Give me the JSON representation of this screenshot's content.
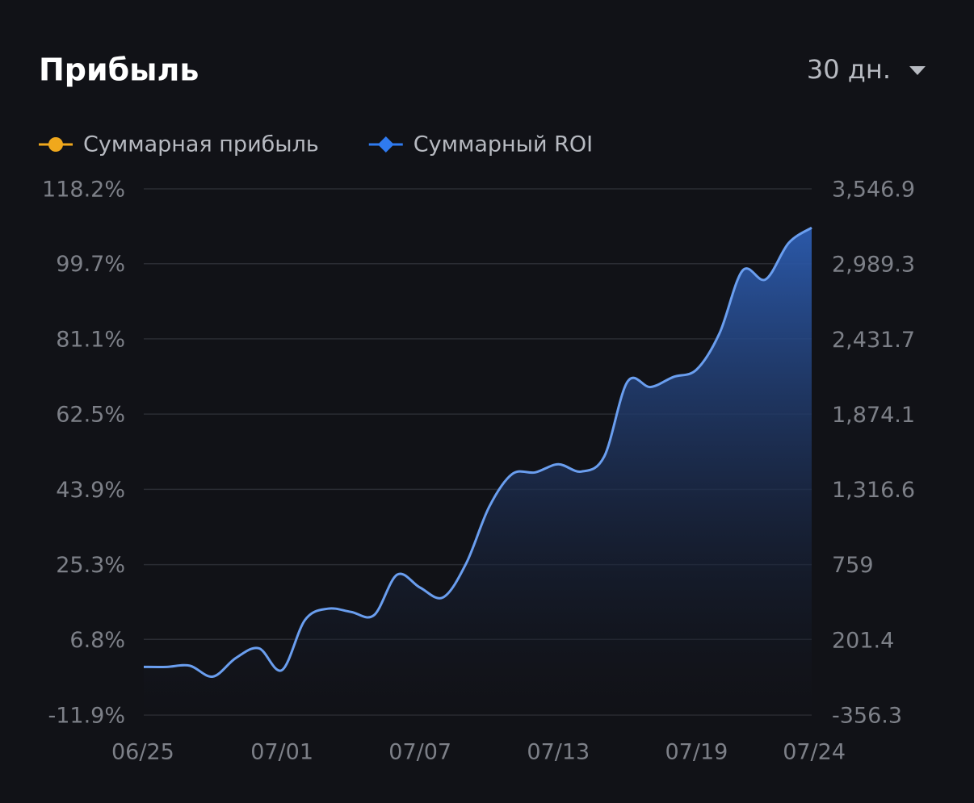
{
  "chart_data": {
    "type": "line",
    "title": "Прибыль",
    "period": "30 дн.",
    "legend_entries": [
      {
        "name": "Суммарная прибыль",
        "color": "#f0a81c",
        "marker": "circle"
      },
      {
        "name": "Суммарный ROI",
        "color": "#2f7bf0",
        "marker": "diamond"
      }
    ],
    "categories": [
      "06/25",
      null,
      null,
      null,
      null,
      null,
      "07/01",
      null,
      null,
      null,
      null,
      null,
      "07/07",
      null,
      null,
      null,
      null,
      null,
      "07/13",
      null,
      null,
      null,
      null,
      null,
      "07/19",
      null,
      null,
      null,
      null,
      "07/24"
    ],
    "series": [
      {
        "name": "Суммарный ROI",
        "color": "#6a9eef",
        "values": [
          0.0,
          0.0,
          0.3,
          -2.4,
          2.2,
          4.6,
          -0.8,
          11.6,
          14.4,
          13.6,
          12.8,
          22.8,
          19.6,
          17.2,
          25.6,
          39.6,
          47.7,
          48.1,
          50.1,
          48.3,
          52.1,
          70.5,
          69.2,
          71.7,
          73.5,
          82.5,
          98.0,
          95.8,
          104.8,
          108.6
        ]
      }
    ],
    "ylim": [
      -11.9,
      118.2
    ],
    "yticks": [
      {
        "value": 118.2,
        "label": "118.2%"
      },
      {
        "value": 99.7,
        "label": "99.7%"
      },
      {
        "value": 81.1,
        "label": "81.1%"
      },
      {
        "value": 62.5,
        "label": "62.5%"
      },
      {
        "value": 43.9,
        "label": "43.9%"
      },
      {
        "value": 25.3,
        "label": "25.3%"
      },
      {
        "value": 6.8,
        "label": "6.8%"
      },
      {
        "value": -11.9,
        "label": "-11.9%"
      }
    ],
    "y2lim": [
      -356.3,
      3546.9
    ],
    "y2ticks": [
      {
        "value": 3546.9,
        "label": "3,546.9"
      },
      {
        "value": 2989.3,
        "label": "2,989.3"
      },
      {
        "value": 2431.7,
        "label": "2,431.7"
      },
      {
        "value": 1874.1,
        "label": "1,874.1"
      },
      {
        "value": 1316.6,
        "label": "1,316.6"
      },
      759,
      201.4,
      -356.3
    ],
    "grid": true
  }
}
